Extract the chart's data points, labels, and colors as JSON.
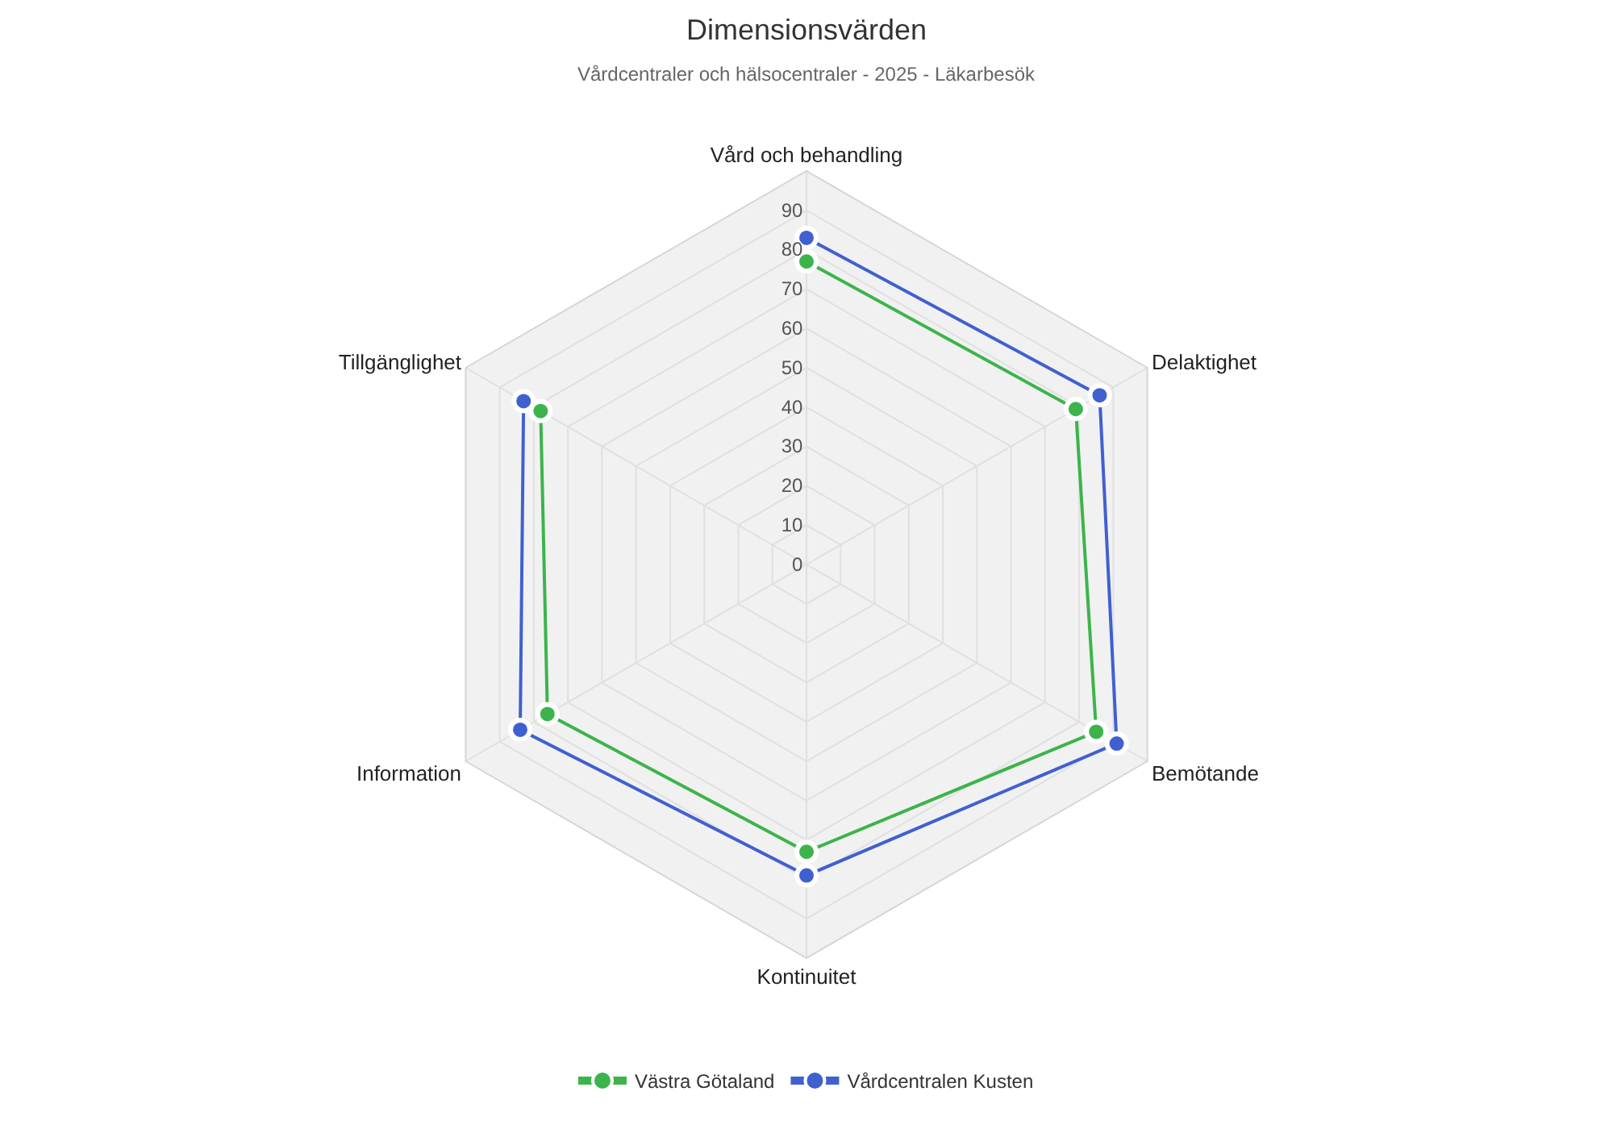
{
  "chart_data": {
    "type": "radar",
    "title": "Dimensionsvärden",
    "subtitle": "Vårdcentraler och hälsocentraler - 2025 - Läkarbesök",
    "categories": [
      "Vård och behandling",
      "Delaktighet",
      "Bemötande",
      "Kontinuitet",
      "Information",
      "Tillgänglighet"
    ],
    "series": [
      {
        "name": "Västra Götaland",
        "color": "#3cb44b",
        "values": [
          77,
          79,
          85,
          73,
          76,
          78
        ]
      },
      {
        "name": "Vårdcentralen Kusten",
        "color": "#4060d0",
        "values": [
          83,
          86,
          91,
          79,
          84,
          83
        ]
      }
    ],
    "ylim": [
      0,
      100
    ],
    "yticks": [
      0,
      10,
      20,
      30,
      40,
      50,
      60,
      70,
      80,
      90
    ],
    "grid": true,
    "legend": "bottom",
    "marker": "circle",
    "line_style": "solid"
  }
}
